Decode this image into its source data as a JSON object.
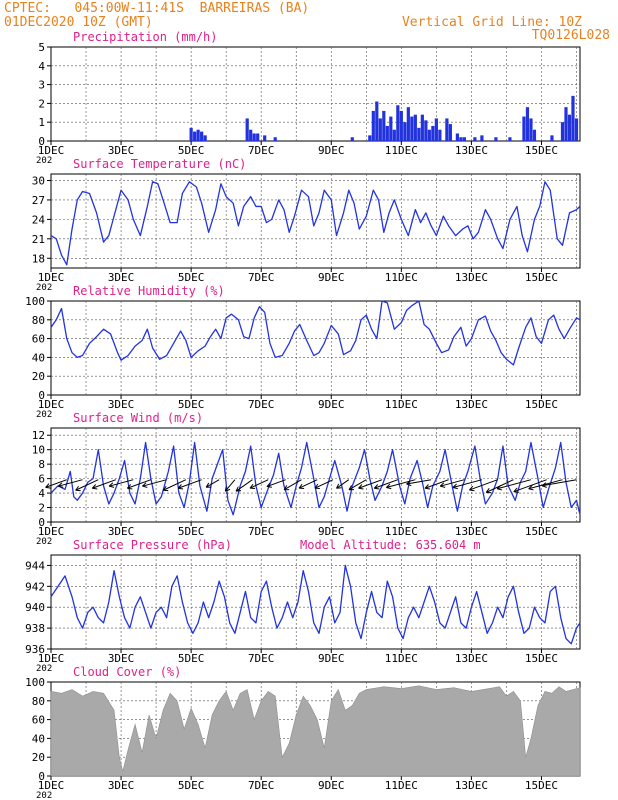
{
  "header": {
    "line1_left": "CPTEC:   045:00W-11:41S  BARREIRAS (BA)",
    "line2_left": "01DEC2020 10Z (GMT)",
    "line2_right": "Vertical Grid Line: 10Z",
    "line3_right": "TQ0126L028"
  },
  "colors": {
    "header_text": "#e8821e",
    "panel_title": "#e0208c",
    "series_line": "#2233dd",
    "cloud_fill": "#a9a9a9",
    "wind_arrow": "#000000"
  },
  "x_axis_ticks": [
    "1DEC",
    "3DEC",
    "5DEC",
    "7DEC",
    "9DEC",
    "11DEC",
    "13DEC",
    "15DEC"
  ],
  "x_axis_stub": "202",
  "chart_data": [
    {
      "id": "precip",
      "type": "bar",
      "title": "Precipitation (mm/h)",
      "ylim": [
        0,
        5
      ],
      "yticks": [
        "0",
        "1",
        "2",
        "3",
        "4",
        "5"
      ],
      "x_day_range": [
        1,
        16.1
      ],
      "x": [
        5.0,
        5.1,
        5.2,
        5.3,
        5.4,
        6.6,
        6.7,
        6.8,
        6.9,
        7.1,
        7.4,
        9.6,
        10.1,
        10.2,
        10.3,
        10.4,
        10.5,
        10.6,
        10.7,
        10.8,
        10.9,
        11.0,
        11.1,
        11.2,
        11.3,
        11.4,
        11.5,
        11.6,
        11.7,
        11.8,
        11.9,
        12.0,
        12.1,
        12.3,
        12.4,
        12.6,
        12.7,
        12.8,
        13.1,
        13.3,
        13.7,
        14.1,
        14.5,
        14.6,
        14.7,
        14.8,
        15.3,
        15.6,
        15.7,
        15.8,
        15.9,
        16.0
      ],
      "values": [
        0.7,
        0.5,
        0.6,
        0.5,
        0.3,
        1.2,
        0.6,
        0.4,
        0.4,
        0.3,
        0.2,
        0.2,
        0.3,
        1.6,
        2.1,
        1.2,
        1.6,
        0.8,
        1.3,
        0.6,
        1.9,
        1.6,
        1.0,
        1.8,
        1.3,
        1.4,
        0.7,
        1.4,
        1.1,
        0.6,
        0.8,
        1.2,
        0.6,
        1.2,
        0.9,
        0.4,
        0.2,
        0.2,
        0.2,
        0.3,
        0.2,
        0.2,
        1.3,
        1.8,
        1.2,
        0.6,
        0.3,
        1.0,
        1.8,
        1.4,
        2.4,
        1.2
      ]
    },
    {
      "id": "temp",
      "type": "line",
      "title": "Surface Temperature (nC)",
      "ylim": [
        16.5,
        31
      ],
      "yticks": [
        "18",
        "21",
        "24",
        "27",
        "30"
      ],
      "x_day_range": [
        1,
        16.1
      ],
      "x": [
        1.0,
        1.15,
        1.3,
        1.45,
        1.6,
        1.75,
        1.9,
        2.1,
        2.3,
        2.5,
        2.65,
        2.8,
        3.0,
        3.2,
        3.35,
        3.55,
        3.75,
        3.9,
        4.05,
        4.2,
        4.4,
        4.6,
        4.75,
        4.95,
        5.15,
        5.3,
        5.5,
        5.7,
        5.85,
        6.0,
        6.2,
        6.35,
        6.5,
        6.7,
        6.85,
        7.0,
        7.15,
        7.3,
        7.5,
        7.65,
        7.8,
        7.95,
        8.15,
        8.35,
        8.5,
        8.65,
        8.8,
        9.0,
        9.15,
        9.35,
        9.5,
        9.65,
        9.8,
        10.0,
        10.2,
        10.35,
        10.5,
        10.65,
        10.8,
        11.0,
        11.2,
        11.4,
        11.55,
        11.7,
        11.85,
        12.0,
        12.2,
        12.35,
        12.55,
        12.75,
        12.9,
        13.05,
        13.2,
        13.4,
        13.55,
        13.75,
        13.9,
        14.1,
        14.3,
        14.45,
        14.6,
        14.8,
        14.95,
        15.1,
        15.25,
        15.45,
        15.6,
        15.8,
        16.0,
        16.1
      ],
      "values": [
        21.5,
        21.0,
        18.5,
        17.0,
        22.5,
        27.0,
        28.3,
        28.0,
        25.0,
        20.5,
        21.5,
        24.5,
        28.5,
        27.0,
        24.0,
        21.5,
        26.0,
        29.8,
        29.5,
        27.0,
        23.5,
        23.5,
        28.0,
        29.8,
        29.0,
        26.5,
        22.0,
        25.5,
        29.5,
        27.5,
        26.5,
        23.0,
        26.0,
        27.5,
        26.0,
        26.0,
        23.5,
        24.0,
        27.0,
        25.5,
        22.0,
        24.5,
        28.5,
        27.5,
        23.0,
        25.0,
        28.5,
        27.0,
        21.5,
        25.0,
        28.5,
        26.5,
        22.5,
        24.5,
        28.5,
        27.0,
        22.0,
        25.0,
        27.0,
        24.0,
        21.5,
        25.5,
        23.5,
        25.0,
        23.0,
        21.5,
        24.5,
        23.0,
        21.5,
        22.5,
        23.0,
        21.0,
        22.0,
        25.5,
        24.0,
        21.0,
        19.5,
        24.0,
        26.0,
        21.5,
        19.0,
        24.0,
        26.0,
        29.8,
        28.5,
        21.0,
        20.0,
        25.0,
        25.5,
        26.0
      ]
    },
    {
      "id": "rh",
      "type": "line",
      "title": "Relative Humidity (%)",
      "ylim": [
        0,
        100
      ],
      "yticks": [
        "0",
        "20",
        "40",
        "60",
        "80",
        "100"
      ],
      "x_day_range": [
        1,
        16.1
      ],
      "x": [
        1.0,
        1.15,
        1.3,
        1.45,
        1.6,
        1.75,
        1.9,
        2.1,
        2.3,
        2.5,
        2.7,
        2.9,
        3.0,
        3.2,
        3.4,
        3.6,
        3.75,
        3.9,
        4.1,
        4.3,
        4.5,
        4.7,
        4.85,
        5.0,
        5.2,
        5.4,
        5.55,
        5.7,
        5.85,
        6.0,
        6.15,
        6.35,
        6.5,
        6.65,
        6.8,
        6.95,
        7.1,
        7.25,
        7.4,
        7.6,
        7.8,
        7.95,
        8.1,
        8.3,
        8.5,
        8.65,
        8.8,
        9.0,
        9.2,
        9.35,
        9.55,
        9.7,
        9.85,
        10.0,
        10.15,
        10.3,
        10.45,
        10.6,
        10.8,
        11.0,
        11.15,
        11.3,
        11.5,
        11.65,
        11.8,
        12.0,
        12.15,
        12.35,
        12.5,
        12.7,
        12.85,
        13.0,
        13.2,
        13.4,
        13.55,
        13.7,
        13.85,
        14.0,
        14.2,
        14.35,
        14.55,
        14.7,
        14.85,
        15.0,
        15.2,
        15.35,
        15.5,
        15.65,
        15.8,
        16.0,
        16.1
      ],
      "values": [
        72.0,
        80.0,
        92.0,
        60.0,
        45.0,
        40.0,
        42.0,
        55.0,
        62.0,
        70.0,
        65.0,
        45.0,
        37.0,
        42.0,
        52.0,
        58.0,
        70.0,
        50.0,
        38.0,
        42.0,
        55.0,
        68.0,
        58.0,
        40.0,
        47.0,
        52.0,
        62.0,
        70.0,
        60.0,
        82.0,
        86.0,
        80.0,
        62.0,
        60.0,
        82.0,
        94.0,
        88.0,
        55.0,
        40.0,
        42.0,
        55.0,
        68.0,
        75.0,
        58.0,
        42.0,
        45.0,
        55.0,
        74.0,
        65.0,
        43.0,
        47.0,
        58.0,
        80.0,
        85.0,
        70.0,
        60.0,
        100.0,
        98.0,
        70.0,
        77.0,
        90.0,
        95.0,
        100.0,
        75.0,
        70.0,
        55.0,
        45.0,
        48.0,
        62.0,
        72.0,
        52.0,
        60.0,
        80.0,
        84.0,
        68.0,
        58.0,
        45.0,
        38.0,
        32.0,
        50.0,
        72.0,
        82.0,
        62.0,
        55.0,
        80.0,
        85.0,
        70.0,
        60.0,
        70.0,
        82.0,
        80.0
      ]
    },
    {
      "id": "wind",
      "type": "line",
      "title": "Surface Wind (m/s)",
      "ylim": [
        0,
        13
      ],
      "yticks": [
        "0",
        "2",
        "4",
        "6",
        "8",
        "10",
        "12"
      ],
      "x_day_range": [
        1,
        16.1
      ],
      "x": [
        1.0,
        1.2,
        1.4,
        1.55,
        1.65,
        1.75,
        1.9,
        2.05,
        2.2,
        2.35,
        2.5,
        2.65,
        2.8,
        2.95,
        3.1,
        3.25,
        3.4,
        3.55,
        3.7,
        3.85,
        4.0,
        4.15,
        4.35,
        4.5,
        4.65,
        4.8,
        4.95,
        5.1,
        5.25,
        5.45,
        5.6,
        5.75,
        5.9,
        6.05,
        6.2,
        6.4,
        6.55,
        6.7,
        6.85,
        7.0,
        7.15,
        7.35,
        7.5,
        7.65,
        7.85,
        8.0,
        8.15,
        8.3,
        8.5,
        8.65,
        8.8,
        8.95,
        9.1,
        9.3,
        9.45,
        9.6,
        9.8,
        9.95,
        10.1,
        10.25,
        10.45,
        10.6,
        10.75,
        10.95,
        11.1,
        11.25,
        11.45,
        11.6,
        11.75,
        11.9,
        12.1,
        12.25,
        12.45,
        12.6,
        12.75,
        12.9,
        13.1,
        13.25,
        13.4,
        13.6,
        13.75,
        13.9,
        14.05,
        14.25,
        14.4,
        14.55,
        14.7,
        14.9,
        15.05,
        15.2,
        15.4,
        15.55,
        15.7,
        15.85,
        16.0,
        16.1
      ],
      "values": [
        4.0,
        5.0,
        4.5,
        7.0,
        3.5,
        3.0,
        4.0,
        5.5,
        6.0,
        10.0,
        5.0,
        2.5,
        4.0,
        6.0,
        8.5,
        4.0,
        2.5,
        6.0,
        11.0,
        6.0,
        2.5,
        3.5,
        7.0,
        10.5,
        4.0,
        2.0,
        5.5,
        11.0,
        5.0,
        1.5,
        6.0,
        8.0,
        10.0,
        3.0,
        1.0,
        5.0,
        7.0,
        10.5,
        5.0,
        2.0,
        4.0,
        6.5,
        9.5,
        5.0,
        2.0,
        5.0,
        7.5,
        11.0,
        6.0,
        2.0,
        3.5,
        6.0,
        8.5,
        5.0,
        1.5,
        5.0,
        7.5,
        10.0,
        6.0,
        3.0,
        5.0,
        7.0,
        10.0,
        5.0,
        2.5,
        6.0,
        8.5,
        5.5,
        2.0,
        5.0,
        7.0,
        10.0,
        5.0,
        1.5,
        5.0,
        7.0,
        10.5,
        6.0,
        2.5,
        4.0,
        6.0,
        10.5,
        5.0,
        3.0,
        5.5,
        7.0,
        11.0,
        6.0,
        2.0,
        4.5,
        7.5,
        11.0,
        5.5,
        2.0,
        3.0,
        1.0
      ]
    },
    {
      "id": "pres",
      "type": "line",
      "title": "Surface Pressure (hPa)",
      "annotation": "Model Altitude: 635.604 m",
      "ylim": [
        936,
        945
      ],
      "yticks": [
        "936",
        "938",
        "940",
        "942",
        "944"
      ],
      "x_day_range": [
        1,
        16.1
      ],
      "x": [
        1.0,
        1.2,
        1.4,
        1.6,
        1.75,
        1.9,
        2.05,
        2.2,
        2.35,
        2.5,
        2.65,
        2.8,
        2.95,
        3.1,
        3.25,
        3.4,
        3.55,
        3.7,
        3.85,
        4.0,
        4.15,
        4.3,
        4.45,
        4.6,
        4.75,
        4.9,
        5.05,
        5.2,
        5.35,
        5.5,
        5.65,
        5.8,
        5.95,
        6.1,
        6.25,
        6.4,
        6.55,
        6.7,
        6.85,
        7.0,
        7.15,
        7.3,
        7.45,
        7.6,
        7.75,
        7.9,
        8.05,
        8.2,
        8.35,
        8.5,
        8.65,
        8.8,
        8.95,
        9.1,
        9.25,
        9.4,
        9.55,
        9.7,
        9.85,
        10.0,
        10.15,
        10.3,
        10.45,
        10.6,
        10.75,
        10.9,
        11.05,
        11.2,
        11.35,
        11.5,
        11.65,
        11.8,
        11.95,
        12.1,
        12.25,
        12.4,
        12.55,
        12.7,
        12.85,
        13.0,
        13.15,
        13.3,
        13.45,
        13.6,
        13.75,
        13.9,
        14.05,
        14.2,
        14.35,
        14.5,
        14.65,
        14.8,
        14.95,
        15.1,
        15.25,
        15.4,
        15.55,
        15.7,
        15.85,
        16.0,
        16.1
      ],
      "values": [
        941.0,
        942.0,
        943.0,
        941.0,
        939.0,
        938.0,
        939.5,
        940.0,
        939.0,
        938.5,
        940.5,
        943.5,
        941.0,
        939.0,
        938.0,
        940.0,
        941.0,
        939.5,
        938.0,
        939.5,
        940.0,
        939.0,
        942.0,
        943.0,
        940.5,
        938.5,
        937.5,
        938.5,
        940.5,
        939.0,
        940.5,
        942.5,
        941.0,
        938.5,
        937.5,
        939.5,
        941.5,
        939.0,
        938.5,
        941.5,
        942.5,
        940.0,
        938.0,
        939.0,
        940.5,
        939.0,
        940.5,
        943.5,
        941.5,
        938.5,
        937.5,
        940.0,
        941.0,
        938.5,
        939.5,
        944.0,
        942.0,
        938.5,
        937.0,
        939.5,
        941.5,
        939.5,
        939.0,
        942.5,
        941.0,
        938.0,
        937.0,
        939.0,
        940.0,
        939.0,
        940.5,
        942.0,
        940.5,
        938.5,
        938.0,
        939.5,
        941.0,
        938.5,
        938.0,
        940.0,
        941.5,
        939.5,
        937.5,
        938.5,
        940.0,
        939.0,
        941.0,
        942.0,
        939.5,
        937.5,
        938.0,
        940.0,
        939.0,
        938.5,
        941.5,
        942.0,
        939.0,
        937.0,
        936.5,
        938.0,
        938.5
      ]
    },
    {
      "id": "cloud",
      "type": "area",
      "title": "Cloud Cover (%)",
      "ylim": [
        0,
        100
      ],
      "yticks": [
        "0",
        "20",
        "40",
        "60",
        "80",
        "100"
      ],
      "x_day_range": [
        1,
        16.1
      ],
      "x": [
        1.0,
        1.3,
        1.6,
        1.9,
        2.2,
        2.5,
        2.8,
        2.95,
        3.05,
        3.2,
        3.4,
        3.6,
        3.8,
        4.0,
        4.2,
        4.4,
        4.6,
        4.8,
        5.0,
        5.2,
        5.4,
        5.6,
        5.8,
        6.0,
        6.2,
        6.4,
        6.6,
        6.8,
        7.0,
        7.2,
        7.4,
        7.6,
        7.8,
        8.0,
        8.2,
        8.4,
        8.6,
        8.8,
        9.0,
        9.2,
        9.4,
        9.6,
        9.8,
        10.0,
        10.5,
        11.0,
        11.5,
        12.0,
        12.5,
        13.0,
        13.5,
        13.8,
        14.0,
        14.2,
        14.4,
        14.55,
        14.7,
        14.9,
        15.1,
        15.3,
        15.5,
        15.7,
        15.9,
        16.1
      ],
      "values": [
        90.0,
        88.0,
        92.0,
        85.0,
        90.0,
        88.0,
        70.0,
        20.0,
        5.0,
        28.0,
        55.0,
        25.0,
        65.0,
        40.0,
        70.0,
        88.0,
        80.0,
        50.0,
        72.0,
        55.0,
        30.0,
        65.0,
        80.0,
        90.0,
        70.0,
        88.0,
        92.0,
        60.0,
        80.0,
        90.0,
        85.0,
        20.0,
        35.0,
        65.0,
        85.0,
        75.0,
        60.0,
        30.0,
        80.0,
        92.0,
        70.0,
        75.0,
        88.0,
        92.0,
        95.0,
        93.0,
        96.0,
        92.0,
        94.0,
        90.0,
        93.0,
        95.0,
        85.0,
        90.0,
        80.0,
        20.0,
        40.0,
        75.0,
        90.0,
        88.0,
        95.0,
        90.0,
        92.0,
        94.0
      ]
    },
    {
      "id": "wind_vectors",
      "type": "scatter",
      "description": "Wind direction arrows overlaid on the Surface Wind panel",
      "x": [
        1.45,
        1.9,
        2.35,
        2.85,
        3.35,
        3.85,
        4.3,
        4.85,
        5.3,
        5.8,
        6.25,
        6.75,
        7.2,
        7.7,
        8.15,
        8.6,
        9.05,
        9.5,
        10.0,
        10.45,
        10.9,
        11.4,
        11.85,
        12.35,
        12.8,
        13.3,
        13.75,
        14.2,
        14.7,
        15.15,
        15.6,
        16.0
      ],
      "angle_deg": [
        200,
        195,
        205,
        200,
        195,
        200,
        195,
        205,
        200,
        210,
        230,
        215,
        205,
        200,
        210,
        205,
        205,
        215,
        210,
        200,
        200,
        195,
        190,
        200,
        195,
        195,
        200,
        205,
        195,
        200,
        195,
        190
      ],
      "length": [
        4.5,
        5,
        5,
        5,
        5,
        5,
        5,
        5,
        5,
        3,
        3,
        4,
        4,
        4,
        4,
        4,
        4,
        3,
        4,
        5,
        5,
        6,
        5,
        5,
        5,
        6,
        6,
        6,
        7,
        7,
        7,
        7
      ]
    }
  ]
}
